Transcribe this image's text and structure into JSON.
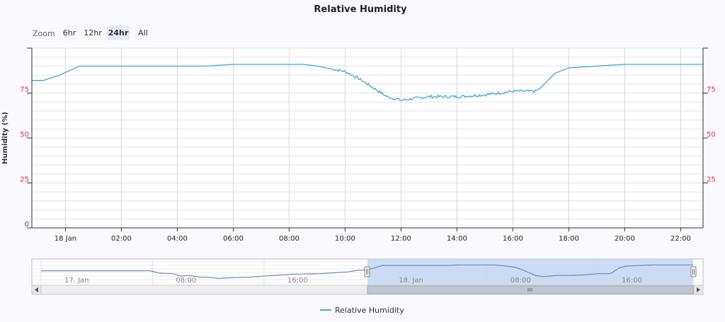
{
  "chart_data": {
    "type": "line",
    "title": "Relative Humidity",
    "ylabel": "Humidity (%)",
    "ylim": [
      0,
      100
    ],
    "y_ticks_left": [
      "0",
      "25",
      "50",
      "75"
    ],
    "y_ticks_right": [
      "25",
      "50",
      "75"
    ],
    "zoom": {
      "label": "Zoom",
      "buttons": [
        {
          "label": "6hr",
          "selected": false
        },
        {
          "label": "12hr",
          "selected": false
        },
        {
          "label": "24hr",
          "selected": true
        },
        {
          "label": "All",
          "selected": false
        }
      ]
    },
    "x_tick_labels": [
      "18 Jan",
      "02:00",
      "04:00",
      "06:00",
      "08:00",
      "10:00",
      "12:00",
      "14:00",
      "16:00",
      "18:00",
      "20:00",
      "22:00"
    ],
    "x_tick_hours": [
      24,
      26,
      28,
      30,
      32,
      34,
      36,
      38,
      40,
      42,
      44,
      46
    ],
    "main_x_range_hours": [
      22.8,
      46.8
    ],
    "navigator": {
      "x_range_hours": [
        0,
        46.8
      ],
      "labels": [
        "17. Jan",
        "08:00",
        "16:00",
        "18. Jan",
        "08:00",
        "16:00"
      ],
      "label_hours": [
        0,
        8,
        16,
        24,
        32,
        40
      ]
    },
    "series": [
      {
        "name": "Relative Humidity",
        "color": "#4aa6d0",
        "x_hours": [
          0,
          2,
          4,
          6,
          7.8,
          8.5,
          9.5,
          10,
          10.6,
          11.5,
          12,
          12.7,
          13.5,
          15,
          16,
          18,
          20,
          22,
          22.8,
          23.2,
          23.8,
          24.5,
          26,
          29,
          30,
          31,
          32.5,
          33,
          34,
          34.5,
          35,
          35.5,
          36,
          37,
          38,
          39,
          40,
          40.8,
          41,
          41.5,
          42,
          43,
          44,
          46.8
        ],
        "y_values": [
          81,
          81,
          81,
          81,
          81,
          77,
          76,
          72,
          73,
          70,
          70,
          68,
          69,
          70,
          72,
          75,
          76,
          79,
          82,
          82,
          85,
          90,
          90,
          90,
          91,
          91,
          91,
          90,
          87,
          83,
          78,
          73,
          71,
          73,
          73,
          74,
          76,
          76,
          78,
          86,
          89,
          90,
          91,
          91
        ]
      }
    ]
  }
}
